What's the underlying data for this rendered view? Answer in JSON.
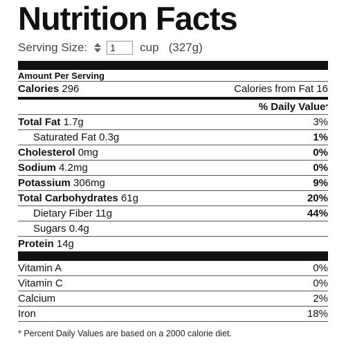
{
  "header": {
    "title": "Nutrition Facts"
  },
  "serving": {
    "label": "Serving Size:",
    "quantity": "1",
    "unit": "cup",
    "weight": "(327g)"
  },
  "amount_per_serving": "Amount Per Serving",
  "calories": {
    "label": "Calories",
    "value": "296",
    "from_fat_label": "Calories from Fat",
    "from_fat_value": "16"
  },
  "daily_value_header": {
    "label": "% Daily Value",
    "marker": "*"
  },
  "nutrients": [
    {
      "label": "Total Fat",
      "amount": "1.7g",
      "pct": "3%",
      "bold": true,
      "sub": false,
      "pct_bold": false
    },
    {
      "label": "Saturated Fat",
      "amount": "0.3g",
      "pct": "1%",
      "bold": false,
      "sub": true,
      "pct_bold": true
    },
    {
      "label": "Cholesterol",
      "amount": "0mg",
      "pct": "0%",
      "bold": true,
      "sub": false,
      "pct_bold": true
    },
    {
      "label": "Sodium",
      "amount": "4.2mg",
      "pct": "0%",
      "bold": true,
      "sub": false,
      "pct_bold": true
    },
    {
      "label": "Potassium",
      "amount": "306mg",
      "pct": "9%",
      "bold": true,
      "sub": false,
      "pct_bold": true
    },
    {
      "label": "Total Carbohydrates",
      "amount": "61g",
      "pct": "20%",
      "bold": true,
      "sub": false,
      "pct_bold": true
    },
    {
      "label": "Dietary Fiber",
      "amount": "11g",
      "pct": "44%",
      "bold": false,
      "sub": true,
      "pct_bold": true
    },
    {
      "label": "Sugars",
      "amount": "0.4g",
      "pct": "",
      "bold": false,
      "sub": true,
      "pct_bold": false
    },
    {
      "label": "Protein",
      "amount": "14g",
      "pct": "",
      "bold": true,
      "sub": false,
      "pct_bold": false
    }
  ],
  "vitamins": [
    {
      "label": "Vitamin A",
      "pct": "0%"
    },
    {
      "label": "Vitamin C",
      "pct": "0%"
    },
    {
      "label": "Calcium",
      "pct": "2%"
    },
    {
      "label": "Iron",
      "pct": "18%"
    }
  ],
  "footnote": "* Percent Daily Values are based on a 2000 calorie diet."
}
